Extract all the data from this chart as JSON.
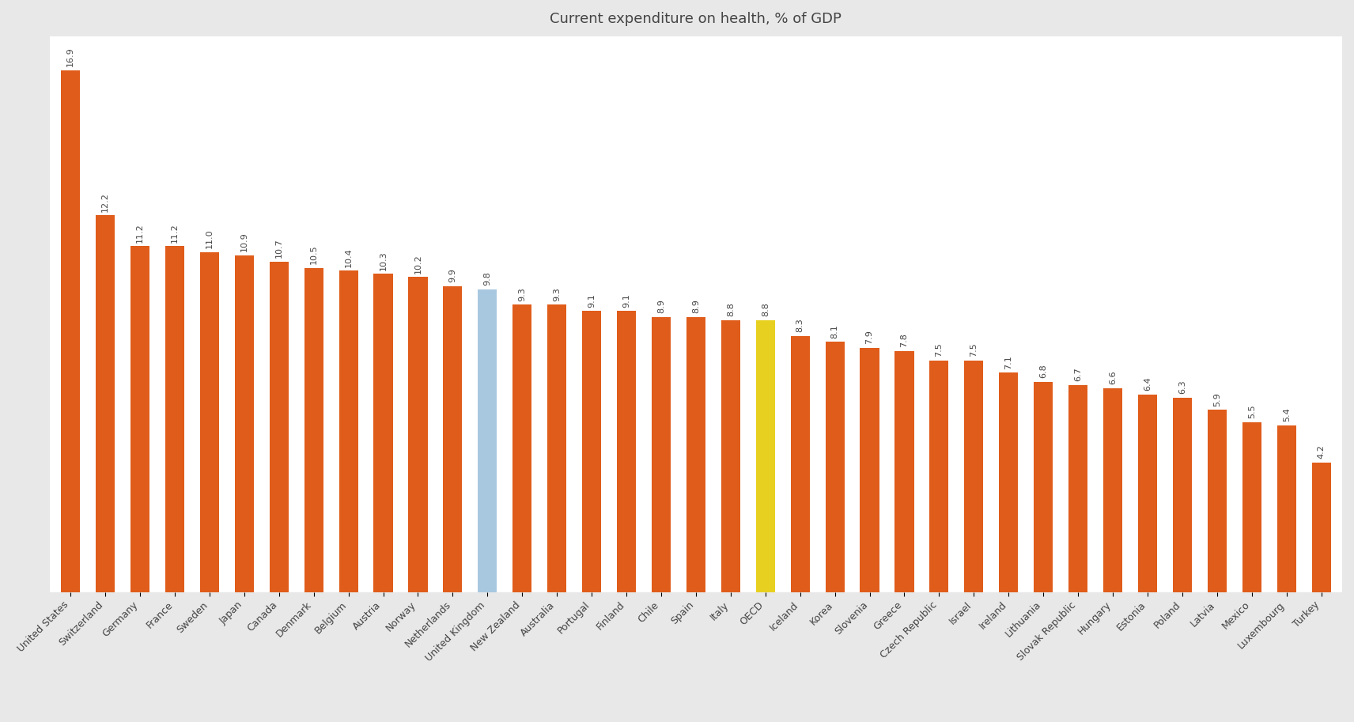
{
  "title": "Current expenditure on health, % of GDP",
  "categories": [
    "United States",
    "Switzerland",
    "Germany",
    "France",
    "Sweden",
    "Japan",
    "Canada",
    "Denmark",
    "Belgium",
    "Austria",
    "Norway",
    "Netherlands",
    "United Kingdom",
    "New Zealand",
    "Australia",
    "Portugal",
    "Finland",
    "Chile",
    "Spain",
    "Italy",
    "OECD",
    "Iceland",
    "Korea",
    "Slovenia",
    "Greece",
    "Czech Republic",
    "Israel",
    "Ireland",
    "Lithuania",
    "Slovak Republic",
    "Hungary",
    "Estonia",
    "Poland",
    "Latvia",
    "Mexico",
    "Luxembourg",
    "Turkey"
  ],
  "values": [
    16.9,
    12.2,
    11.2,
    11.2,
    11.0,
    10.9,
    10.7,
    10.5,
    10.4,
    10.3,
    10.2,
    9.9,
    9.8,
    9.3,
    9.3,
    9.1,
    9.1,
    8.9,
    8.9,
    8.8,
    8.8,
    8.3,
    8.1,
    7.9,
    7.8,
    7.5,
    7.5,
    7.1,
    6.8,
    6.7,
    6.6,
    6.4,
    6.3,
    5.9,
    5.5,
    5.4,
    4.2
  ],
  "bar_colors": [
    "#e05c1a",
    "#e05c1a",
    "#e05c1a",
    "#e05c1a",
    "#e05c1a",
    "#e05c1a",
    "#e05c1a",
    "#e05c1a",
    "#e05c1a",
    "#e05c1a",
    "#e05c1a",
    "#e05c1a",
    "#a8c8e0",
    "#e05c1a",
    "#e05c1a",
    "#e05c1a",
    "#e05c1a",
    "#e05c1a",
    "#e05c1a",
    "#e05c1a",
    "#e8d020",
    "#e05c1a",
    "#e05c1a",
    "#e05c1a",
    "#e05c1a",
    "#e05c1a",
    "#e05c1a",
    "#e05c1a",
    "#e05c1a",
    "#e05c1a",
    "#e05c1a",
    "#e05c1a",
    "#e05c1a",
    "#e05c1a",
    "#e05c1a",
    "#e05c1a",
    "#e05c1a"
  ],
  "figure_bg_color": "#e8e8e8",
  "plot_bg_color": "#ffffff",
  "label_color": "#444444",
  "title_color": "#444444",
  "ylim": [
    0,
    18
  ],
  "bar_width": 0.55,
  "label_fontsize": 8.0,
  "xtick_fontsize": 9.0,
  "title_fontsize": 13
}
